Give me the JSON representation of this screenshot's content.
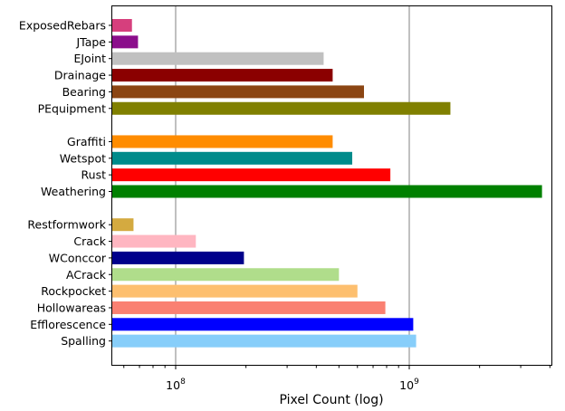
{
  "chart_data": {
    "type": "bar",
    "orientation": "horizontal",
    "xscale": "log",
    "xlabel": "Pixel Count (log)",
    "ylabel": "",
    "title": "",
    "xlim": [
      55000000,
      4500000000
    ],
    "grid": "vertical major gridlines at decades",
    "legend": "none",
    "x_ticks": [
      {
        "value": 100000000,
        "base": "10",
        "exp": "8"
      },
      {
        "value": 1000000000,
        "base": "10",
        "exp": "9"
      }
    ],
    "groups": [
      {
        "bars": [
          {
            "label": "ExposedRebars",
            "value": 65000000,
            "color": "#d63f7d"
          },
          {
            "label": "JTape",
            "value": 69000000,
            "color": "#8b0d8b"
          },
          {
            "label": "EJoint",
            "value": 430000000,
            "color": "#c0c0c0"
          },
          {
            "label": "Drainage",
            "value": 470000000,
            "color": "#8b0000"
          },
          {
            "label": "Bearing",
            "value": 640000000,
            "color": "#8b4513"
          },
          {
            "label": "PEquipment",
            "value": 1500000000,
            "color": "#808000"
          }
        ]
      },
      {
        "bars": [
          {
            "label": "Graffiti",
            "value": 470000000,
            "color": "#ff8c00"
          },
          {
            "label": "Wetspot",
            "value": 570000000,
            "color": "#008b8b"
          },
          {
            "label": "Rust",
            "value": 830000000,
            "color": "#ff0000"
          },
          {
            "label": "Weathering",
            "value": 3700000000,
            "color": "#008000"
          }
        ]
      },
      {
        "bars": [
          {
            "label": "Restformwork",
            "value": 66000000,
            "color": "#d4aa40"
          },
          {
            "label": "Crack",
            "value": 122000000,
            "color": "#ffb6c1"
          },
          {
            "label": "WConccor",
            "value": 196000000,
            "color": "#00008b"
          },
          {
            "label": "ACrack",
            "value": 500000000,
            "color": "#b0dd8b"
          },
          {
            "label": "Rockpocket",
            "value": 600000000,
            "color": "#fdbf6f"
          },
          {
            "label": "Hollowareas",
            "value": 790000000,
            "color": "#fa8072"
          },
          {
            "label": "Efflorescence",
            "value": 1040000000,
            "color": "#0000ff"
          },
          {
            "label": "Spalling",
            "value": 1070000000,
            "color": "#87cefa"
          }
        ]
      }
    ]
  }
}
